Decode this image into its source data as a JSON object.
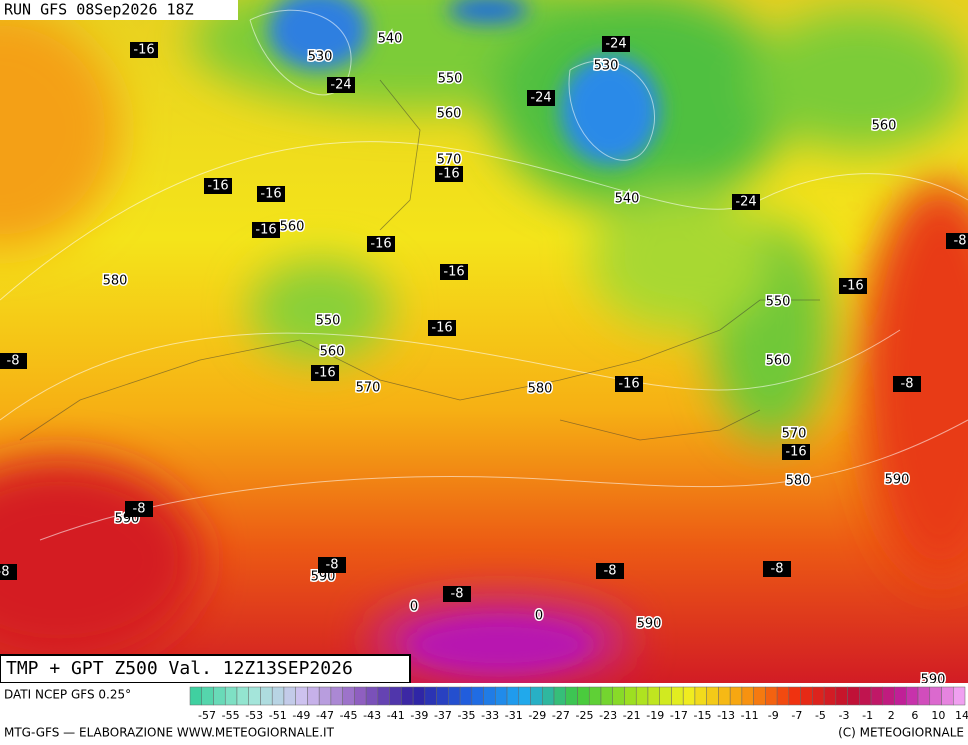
{
  "header": {
    "run": "RUN GFS 08Sep2026 18Z"
  },
  "footer": {
    "title": "TMP + GPT Z500 Val. 12Z13SEP2026",
    "source": "DATI NCEP GFS 0.25°",
    "credit": "MTG-GFS — ELABORAZIONE WWW.METEOGIORNALE.IT",
    "copyright": "(C) METEOGIORNALE"
  },
  "map": {
    "geopotential_labels": [
      530,
      540,
      550,
      560,
      530,
      570,
      540,
      560,
      560,
      580,
      550,
      550,
      560,
      570,
      580,
      560,
      570,
      580,
      590,
      590,
      590,
      0,
      0,
      590,
      590
    ],
    "temperature_labels": [
      -24,
      -24,
      -24,
      -16,
      -16,
      -16,
      -16,
      -16,
      -16,
      -16,
      -24,
      -8,
      -16,
      -16,
      -8,
      -16,
      -16,
      -8,
      -16,
      -8,
      -8,
      -8,
      -8,
      -8,
      -8
    ]
  },
  "legend": {
    "ticks": [
      -57,
      -55,
      -53,
      -51,
      -49,
      -47,
      -45,
      -43,
      -41,
      -39,
      -37,
      -35,
      -33,
      -31,
      -29,
      -27,
      -25,
      -23,
      -21,
      -19,
      -17,
      -15,
      -13,
      -11,
      -9,
      -7,
      -5,
      -3,
      -1,
      2,
      6,
      10,
      14
    ]
  }
}
